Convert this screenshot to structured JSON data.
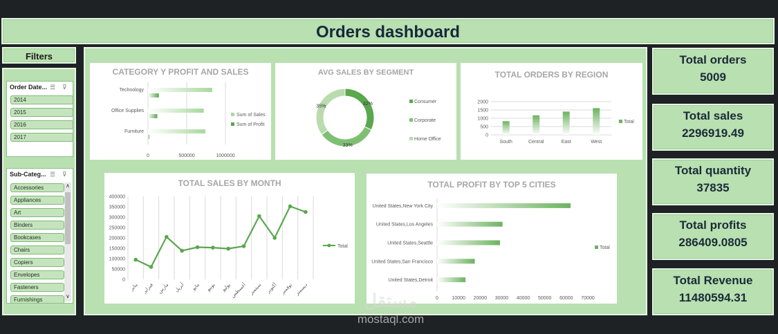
{
  "title": "Orders dashboard",
  "filters_label": "Filters",
  "slicers": {
    "order_date": {
      "header": "Order Date...",
      "items": [
        "2014",
        "2015",
        "2016",
        "2017"
      ]
    },
    "sub_category": {
      "header": "Sub-Categ...",
      "items": [
        "Accessories",
        "Appliances",
        "Art",
        "Binders",
        "Bookcases",
        "Chairs",
        "Copiers",
        "Envelopes",
        "Fasteners",
        "Furnishings"
      ]
    }
  },
  "kpis": [
    {
      "label": "Total orders",
      "value": "5009"
    },
    {
      "label": "Total sales",
      "value": "2296919.49"
    },
    {
      "label": "Total quantity",
      "value": "37835"
    },
    {
      "label": "Total profits",
      "value": "286409.0805"
    },
    {
      "label": "Total Revenue",
      "value": "11480594.31"
    }
  ],
  "watermark": {
    "text": "mostaql.com",
    "logo_text": "مستقل"
  },
  "chart_data": [
    {
      "type": "bar",
      "orientation": "horizontal",
      "title": "CATEGORY Y PROFIT AND SALES",
      "categories": [
        "Technology",
        "Office Supplies",
        "Furniture"
      ],
      "series": [
        {
          "name": "Sum of Sales",
          "values": [
            830000,
            720000,
            740000
          ],
          "color": "#a9d89f"
        },
        {
          "name": "Sum of Profit",
          "values": [
            140000,
            120000,
            18000
          ],
          "color": "#5aa74e"
        }
      ],
      "xticks": [
        "0",
        "500000",
        "1000000"
      ],
      "xlim": [
        0,
        1000000
      ],
      "legend": "right"
    },
    {
      "type": "pie",
      "donut": true,
      "title": "AVG SALES BY SEGMENT",
      "slices": [
        {
          "name": "Consumer",
          "value": 32,
          "label": "32%",
          "color": "#5aa74e"
        },
        {
          "name": "Corporate",
          "value": 33,
          "label": "33%",
          "color": "#7fbf73"
        },
        {
          "name": "Home Office",
          "value": 35,
          "label": "35%",
          "color": "#b8dcae"
        }
      ],
      "legend": "right"
    },
    {
      "type": "bar",
      "title": "TOTAL  ORDERS BY REGION",
      "categories": [
        "South",
        "Central",
        "East",
        "West"
      ],
      "series": [
        {
          "name": "Total",
          "values": [
            822,
            1175,
            1401,
            1611
          ],
          "color": "#6cb35f"
        }
      ],
      "yticks": [
        "0",
        "500",
        "1000",
        "1500",
        "2000"
      ],
      "ylim": [
        0,
        2000
      ],
      "legend": "right"
    },
    {
      "type": "line",
      "title": "TOTAL SALES BY MONTH",
      "categories": [
        "يناير",
        "فبراير",
        "مارس",
        "أبريل",
        "مايو",
        "يونيو",
        "يوليو",
        "أغسطس",
        "سبتمبر",
        "أكتوبر",
        "نوفمبر",
        "ديسمبر"
      ],
      "series": [
        {
          "name": "Total",
          "values": [
            95000,
            60000,
            205000,
            138000,
            155000,
            153000,
            148000,
            160000,
            305000,
            200000,
            352000,
            325000
          ],
          "color": "#5aa74e"
        }
      ],
      "yticks": [
        "0",
        "50000",
        "100000",
        "150000",
        "200000",
        "250000",
        "300000",
        "350000",
        "400000"
      ],
      "ylim": [
        0,
        400000
      ],
      "grid": "vertical",
      "legend": "right"
    },
    {
      "type": "bar",
      "orientation": "horizontal",
      "title": "TOTAL PROFIT BY TOP 5 CITIES",
      "categories": [
        "United States,New York City",
        "United States,Los Angeles",
        "United States,Seattle",
        "United States,San Francisco",
        "United States,Detroit"
      ],
      "series": [
        {
          "name": "Total",
          "values": [
            62000,
            30400,
            29200,
            17500,
            13200
          ],
          "color": "#6cb35f"
        }
      ],
      "xticks": [
        "0",
        "10000",
        "20000",
        "30000",
        "40000",
        "50000",
        "60000",
        "70000"
      ],
      "xlim": [
        0,
        70000
      ],
      "legend": "right"
    }
  ]
}
